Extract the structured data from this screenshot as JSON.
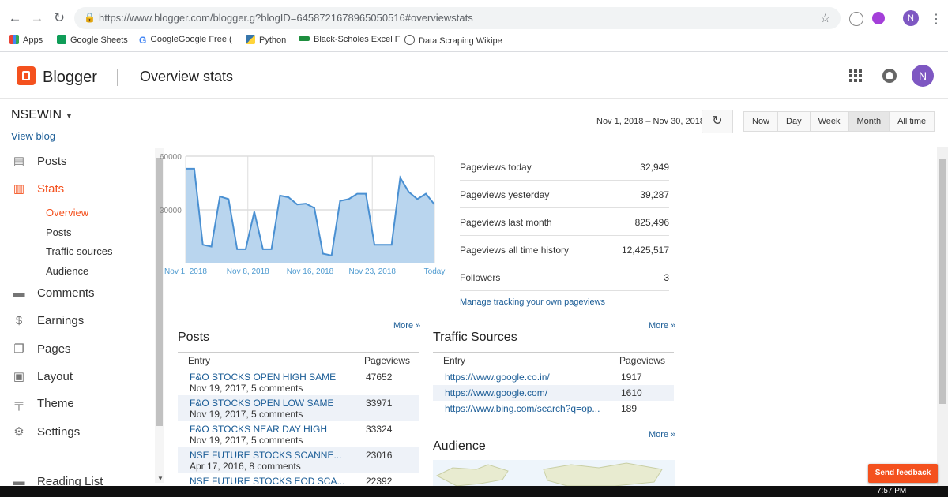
{
  "browser": {
    "url": "https://www.blogger.com/blogger.g?blogID=6458721678965050516#overviewstats",
    "profile_initial": "N",
    "bookmarks": [
      {
        "label": "Apps",
        "icon": "apps-grid-icon"
      },
      {
        "label": "Google Sheets",
        "icon": "sheets-icon"
      },
      {
        "label": "GoogleGoogle Free (",
        "icon": "google-icon"
      },
      {
        "label": "Python",
        "icon": "python-icon"
      },
      {
        "label": "Black-Scholes Excel F",
        "icon": "bookmark-icon"
      },
      {
        "label": "Data Scraping Wikipe",
        "icon": "wikipedia-icon"
      }
    ]
  },
  "header": {
    "logo_text": "Blogger",
    "page_title": "Overview stats",
    "avatar_initial": "N"
  },
  "sidebar": {
    "blog_name": "NSEWIN",
    "view_blog": "View blog",
    "items": [
      {
        "label": "Posts",
        "icon": "posts-icon"
      },
      {
        "label": "Stats",
        "icon": "stats-icon"
      },
      {
        "label": "Comments",
        "icon": "comments-icon"
      },
      {
        "label": "Earnings",
        "icon": "dollar-icon"
      },
      {
        "label": "Pages",
        "icon": "pages-icon"
      },
      {
        "label": "Layout",
        "icon": "layout-icon"
      },
      {
        "label": "Theme",
        "icon": "theme-icon"
      },
      {
        "label": "Settings",
        "icon": "gear-icon"
      },
      {
        "label": "Reading List",
        "icon": "reading-list-icon"
      }
    ],
    "stats_sub": [
      "Overview",
      "Posts",
      "Traffic sources",
      "Audience"
    ]
  },
  "toolbar": {
    "date_range": "Nov 1, 2018 – Nov 30, 2018",
    "ranges": [
      "Now",
      "Day",
      "Week",
      "Month",
      "All time"
    ],
    "active_range": "Month"
  },
  "chart_data": {
    "type": "area",
    "x_ticks": [
      "Nov 1, 2018",
      "Nov 8, 2018",
      "Nov 16, 2018",
      "Nov 23, 2018",
      "Today"
    ],
    "y_ticks": [
      "60000",
      "30000"
    ],
    "ylim": [
      0,
      60000
    ],
    "values": [
      53000,
      53000,
      10500,
      9500,
      37500,
      36000,
      8000,
      8000,
      29000,
      8000,
      8000,
      38000,
      37000,
      33000,
      33500,
      31000,
      5500,
      4500,
      35000,
      36000,
      39000,
      39000,
      10500,
      10500,
      10500,
      48000,
      40000,
      36000,
      39000,
      33000
    ],
    "color": "#4a90d2"
  },
  "stats": {
    "rows": [
      {
        "label": "Pageviews today",
        "value": "32,949"
      },
      {
        "label": "Pageviews yesterday",
        "value": "39,287"
      },
      {
        "label": "Pageviews last month",
        "value": "825,496"
      },
      {
        "label": "Pageviews all time history",
        "value": "12,425,517"
      },
      {
        "label": "Followers",
        "value": "3"
      }
    ],
    "manage_link": "Manage tracking your own pageviews"
  },
  "posts": {
    "title": "Posts",
    "more": "More »",
    "col_entry": "Entry",
    "col_pageviews": "Pageviews",
    "rows": [
      {
        "title": "F&O STOCKS OPEN HIGH SAME",
        "meta": "Nov 19, 2017, 5 comments",
        "views": "47652"
      },
      {
        "title": "F&O STOCKS OPEN LOW SAME",
        "meta": "Nov 19, 2017, 5 comments",
        "views": "33971"
      },
      {
        "title": "F&O STOCKS NEAR DAY HIGH",
        "meta": "Nov 19, 2017, 5 comments",
        "views": "33324"
      },
      {
        "title": "NSE FUTURE STOCKS SCANNE...",
        "meta": "Apr 17, 2016, 8 comments",
        "views": "23016"
      },
      {
        "title": "NSE FUTURE STOCKS EOD SCA...",
        "meta": "",
        "views": "22392"
      }
    ]
  },
  "traffic": {
    "title": "Traffic Sources",
    "more": "More »",
    "col_entry": "Entry",
    "col_pageviews": "Pageviews",
    "rows": [
      {
        "url": "https://www.google.co.in/",
        "views": "1917"
      },
      {
        "url": "https://www.google.com/",
        "views": "1610"
      },
      {
        "url": "https://www.bing.com/search?q=op...",
        "views": "189"
      }
    ]
  },
  "audience": {
    "title": "Audience",
    "more": "More »"
  },
  "feedback": {
    "label": "Send feedback"
  },
  "taskbar": {
    "time": "7:57 PM"
  },
  "colors": {
    "brand": "#f4511e",
    "link": "#1a5c96",
    "avatar": "#7e57c2",
    "chart": "#4a90d2"
  }
}
